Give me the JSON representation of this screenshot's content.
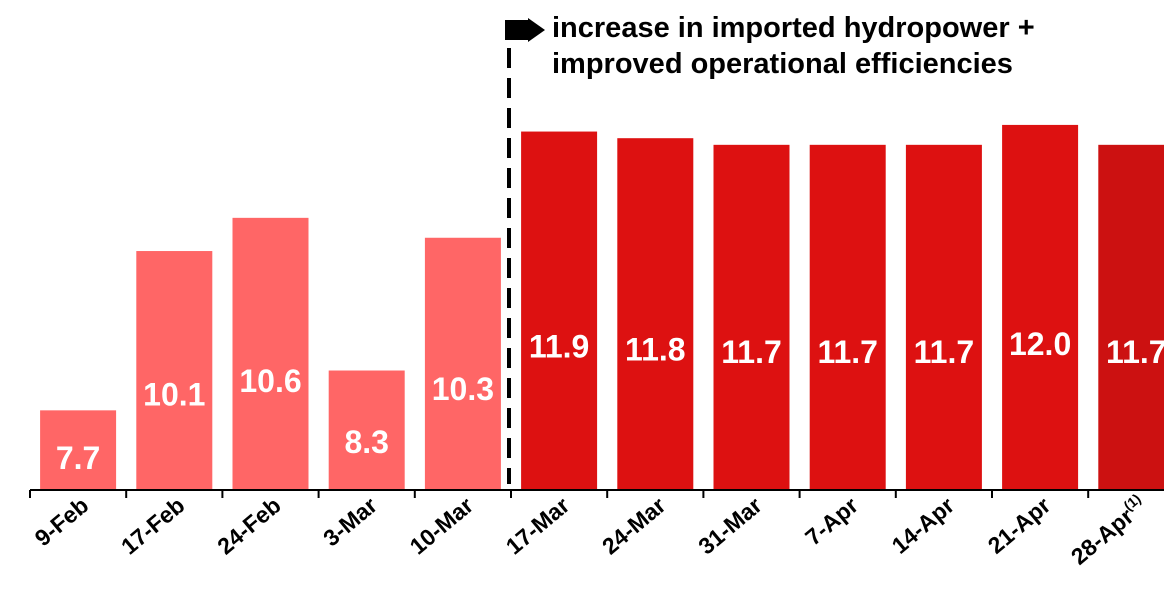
{
  "colors": {
    "before": "#ff6666",
    "after": "#dd1111",
    "after_last": "#cc1111",
    "label_text": "#ffffff",
    "axis": "#000000",
    "annotation": "#000000"
  },
  "annotation": {
    "line1": "increase in imported hydropower +",
    "line2": "improved operational efficiencies",
    "arrow_icon": "black-arrow-icon"
  },
  "chart_data": {
    "type": "bar",
    "categories": [
      "9-Feb",
      "17-Feb",
      "24-Feb",
      "3-Mar",
      "10-Mar",
      "17-Mar",
      "24-Mar",
      "31-Mar",
      "7-Apr",
      "14-Apr",
      "21-Apr",
      "28-Apr"
    ],
    "category_footnote": {
      "category": "28-Apr",
      "superscript": "(1)"
    },
    "values": [
      7.7,
      10.1,
      10.6,
      8.3,
      10.3,
      11.9,
      11.8,
      11.7,
      11.7,
      11.7,
      12.0,
      11.7
    ],
    "data_labels": [
      "7.7",
      "10.1",
      "10.6",
      "8.3",
      "10.3",
      "11.9",
      "11.8",
      "11.7",
      "11.7",
      "11.7",
      "12.0",
      "11.7"
    ],
    "bar_groups": [
      "before",
      "before",
      "before",
      "before",
      "before",
      "after",
      "after",
      "after",
      "after",
      "after",
      "after",
      "after_last"
    ],
    "divider_between": [
      "10-Mar",
      "17-Mar"
    ],
    "ylim": [
      6.5,
      12.3
    ],
    "title": "",
    "xlabel": "",
    "ylabel": "",
    "grid": false,
    "legend": "none"
  }
}
